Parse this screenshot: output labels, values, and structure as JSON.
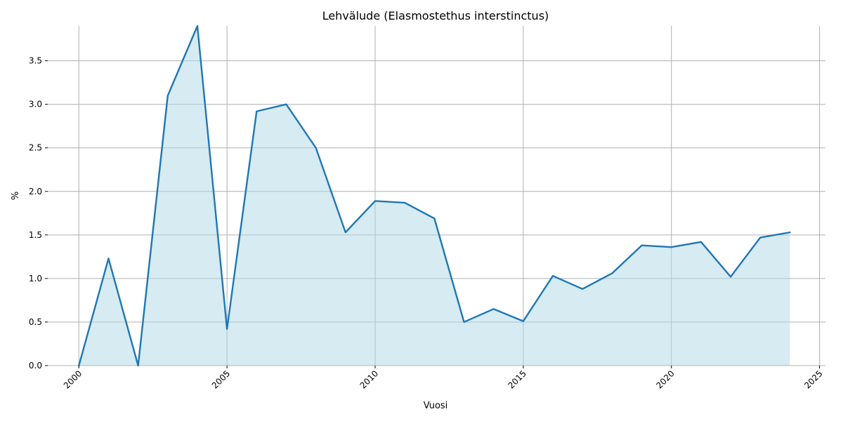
{
  "chart_data": {
    "type": "area",
    "title": "Lehvälude (Elasmostethus interstinctus)",
    "xlabel": "Vuosi",
    "ylabel": "%",
    "x": [
      2000,
      2001,
      2002,
      2003,
      2004,
      2005,
      2006,
      2007,
      2008,
      2009,
      2010,
      2011,
      2012,
      2013,
      2014,
      2015,
      2016,
      2017,
      2018,
      2019,
      2020,
      2021,
      2022,
      2023,
      2024
    ],
    "series": [
      {
        "values": [
          0.0,
          1.23,
          0.0,
          3.1,
          3.9,
          0.42,
          2.92,
          3.0,
          2.5,
          1.53,
          1.89,
          1.87,
          1.69,
          0.5,
          0.65,
          0.51,
          1.03,
          0.88,
          1.06,
          1.38,
          1.36,
          1.42,
          1.02,
          1.47,
          1.53
        ]
      }
    ],
    "xlim": [
      1998.95,
      2025.2
    ],
    "ylim": [
      0,
      3.9
    ],
    "xticks": [
      "2000",
      "2005",
      "2010",
      "2015",
      "2020",
      "2025"
    ],
    "yticks": [
      "0.0",
      "0.5",
      "1.0",
      "1.5",
      "2.0",
      "2.5",
      "3.0",
      "3.5"
    ],
    "grid": true,
    "colors": {
      "line": "#1f77b4",
      "fill": "#add8e6"
    }
  }
}
